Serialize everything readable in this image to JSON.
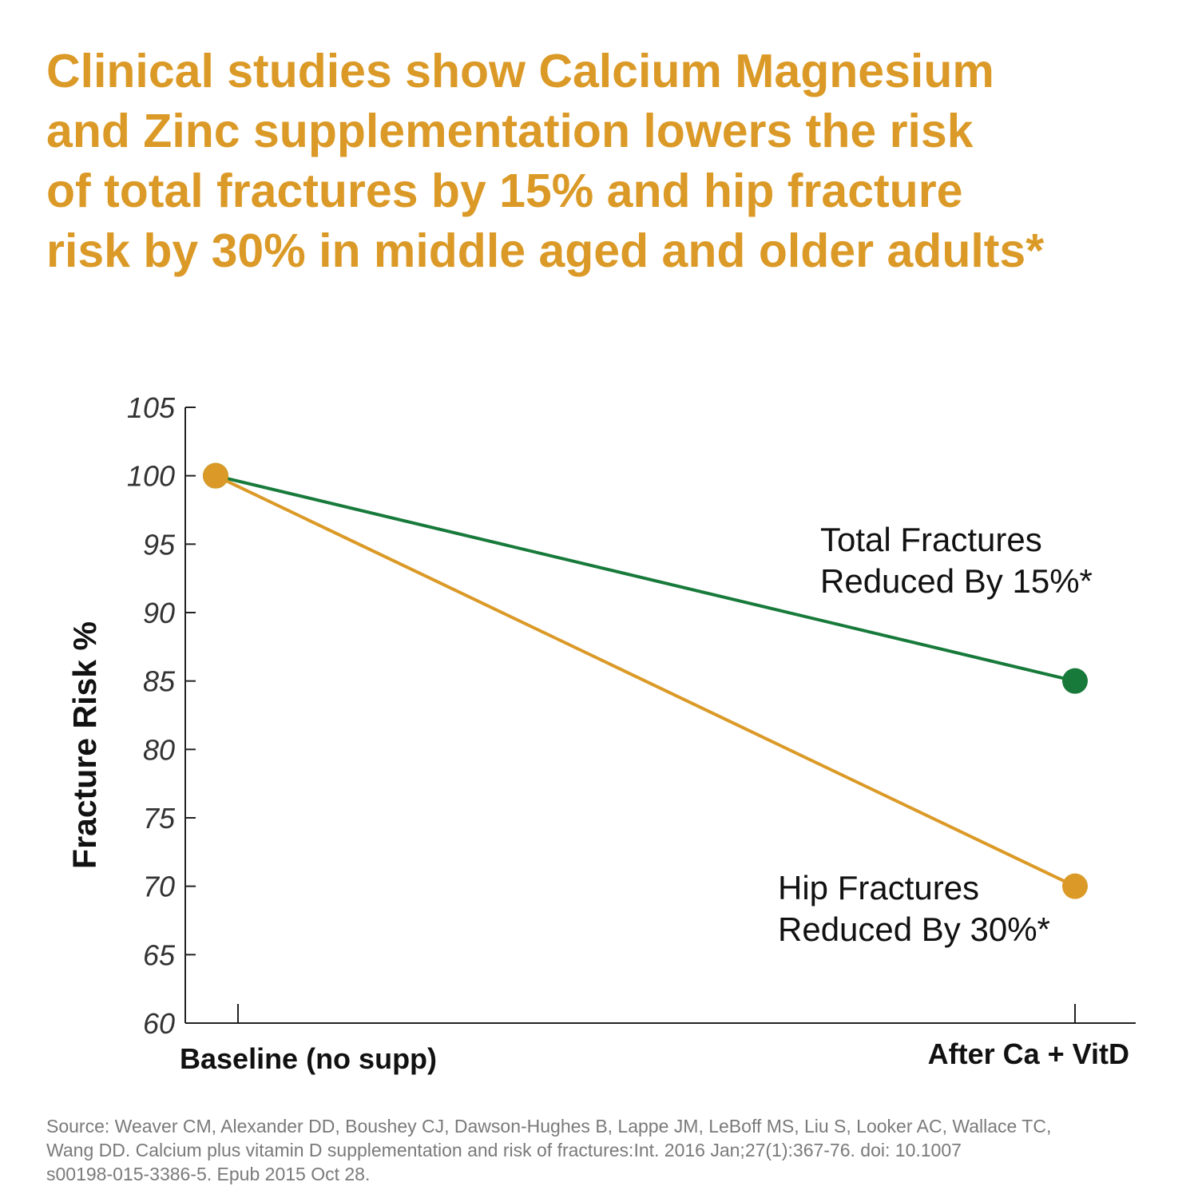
{
  "headline": {
    "lines": [
      "Clinical studies show Calcium Magnesium",
      "and Zinc supplementation lowers the risk",
      "of total fractures by 15% and hip fracture",
      "risk by 30% in middle aged and older adults*"
    ]
  },
  "colors": {
    "accent": "#DB9A27",
    "green": "#177A3A",
    "axis": "#222222",
    "text": "#111111",
    "source": "#7a7a7a"
  },
  "chart_data": {
    "type": "line",
    "title": "",
    "xlabel": "",
    "ylabel": "Fracture Risk %",
    "ylim": [
      60,
      105
    ],
    "y_ticks": [
      "60",
      "65",
      "70",
      "75",
      "80",
      "85",
      "90",
      "95",
      "100",
      "105"
    ],
    "categories": [
      "Baseline (no supp)",
      "After Ca + VitD"
    ],
    "series": [
      {
        "name": "Total Fractures",
        "values": [
          100,
          85
        ],
        "color": "#177A3A",
        "label_lines": [
          "Total Fractures",
          "Reduced By 15%*"
        ]
      },
      {
        "name": "Hip Fractures",
        "values": [
          100,
          70
        ],
        "color": "#DB9A27",
        "label_lines": [
          "Hip Fractures",
          "Reduced By 30%*"
        ]
      }
    ]
  },
  "source": {
    "lines": [
      "Source: Weaver CM, Alexander DD, Boushey CJ, Dawson-Hughes B, Lappe JM, LeBoff MS, Liu S, Looker AC, Wallace TC,",
      "Wang DD. Calcium plus vitamin D supplementation and risk of fractures:Int. 2016 Jan;27(1):367-76. doi: 10.1007",
      "s00198-015-3386-5. Epub 2015 Oct 28."
    ]
  }
}
